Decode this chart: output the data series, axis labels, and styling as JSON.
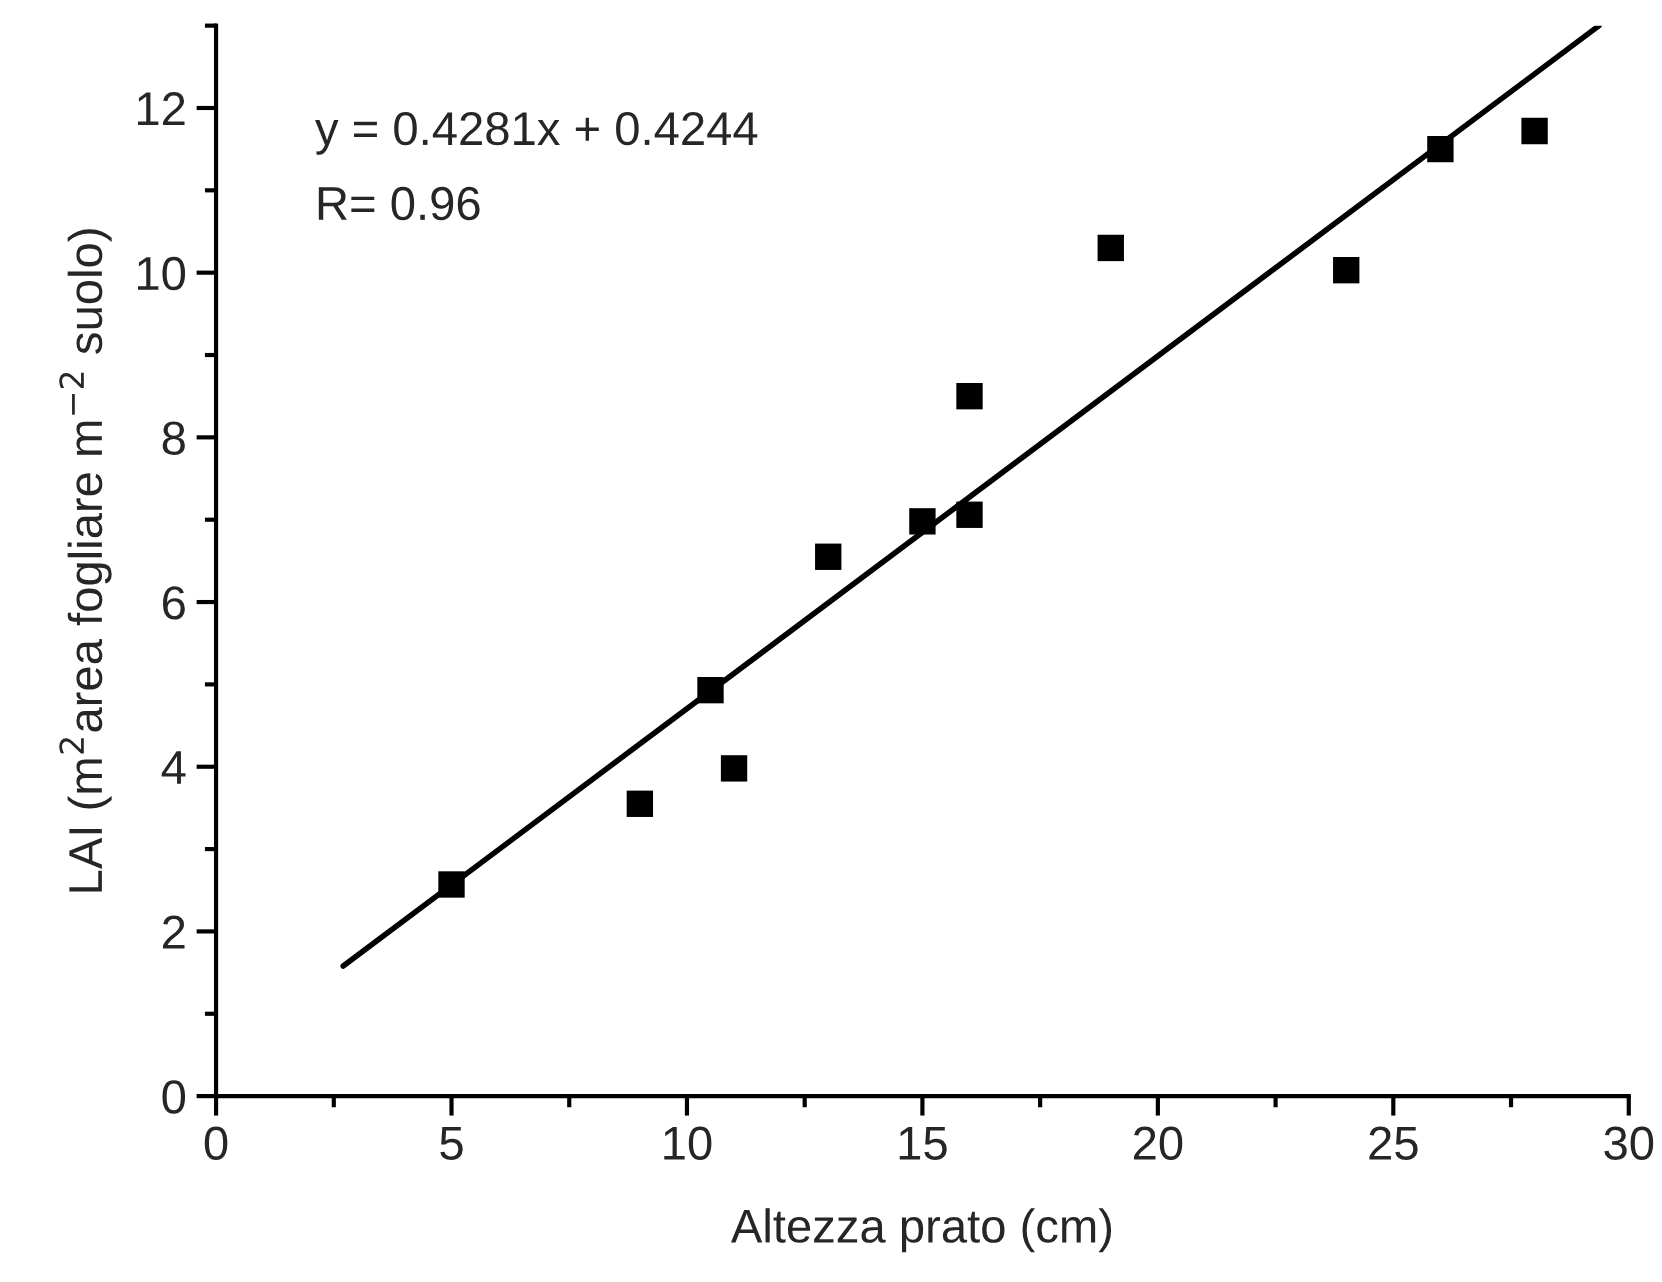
{
  "chart_data": {
    "type": "scatter",
    "xlabel": "Altezza prato (cm)",
    "ylabel": "LAI (m$^{2}$area fogliare m$^{−2}$ suolo)",
    "xlim": [
      0,
      30
    ],
    "xticks": [
      0,
      5,
      10,
      15,
      20,
      25,
      30
    ],
    "ylim": [
      0,
      13
    ],
    "yticks": [
      0,
      2,
      4,
      6,
      8,
      10,
      12
    ],
    "grid": false,
    "legend": false,
    "annotations": [
      "y = 0.4281x + 0.4244",
      "R= 0.96"
    ],
    "series": [
      {
        "marker": "square",
        "color": "#000000",
        "x": [
          5,
          9,
          10.5,
          11,
          13,
          15,
          16,
          16,
          19,
          24,
          26,
          28
        ],
        "values": [
          2.57,
          3.55,
          4.93,
          3.98,
          6.55,
          6.98,
          7.06,
          8.5,
          10.3,
          10.03,
          11.5,
          11.72
        ]
      },
      {
        "type": "line",
        "marker": "none",
        "color": "#000000",
        "x": [
          2.7,
          29.37
        ],
        "values": [
          1.58,
          13.0
        ]
      }
    ]
  }
}
